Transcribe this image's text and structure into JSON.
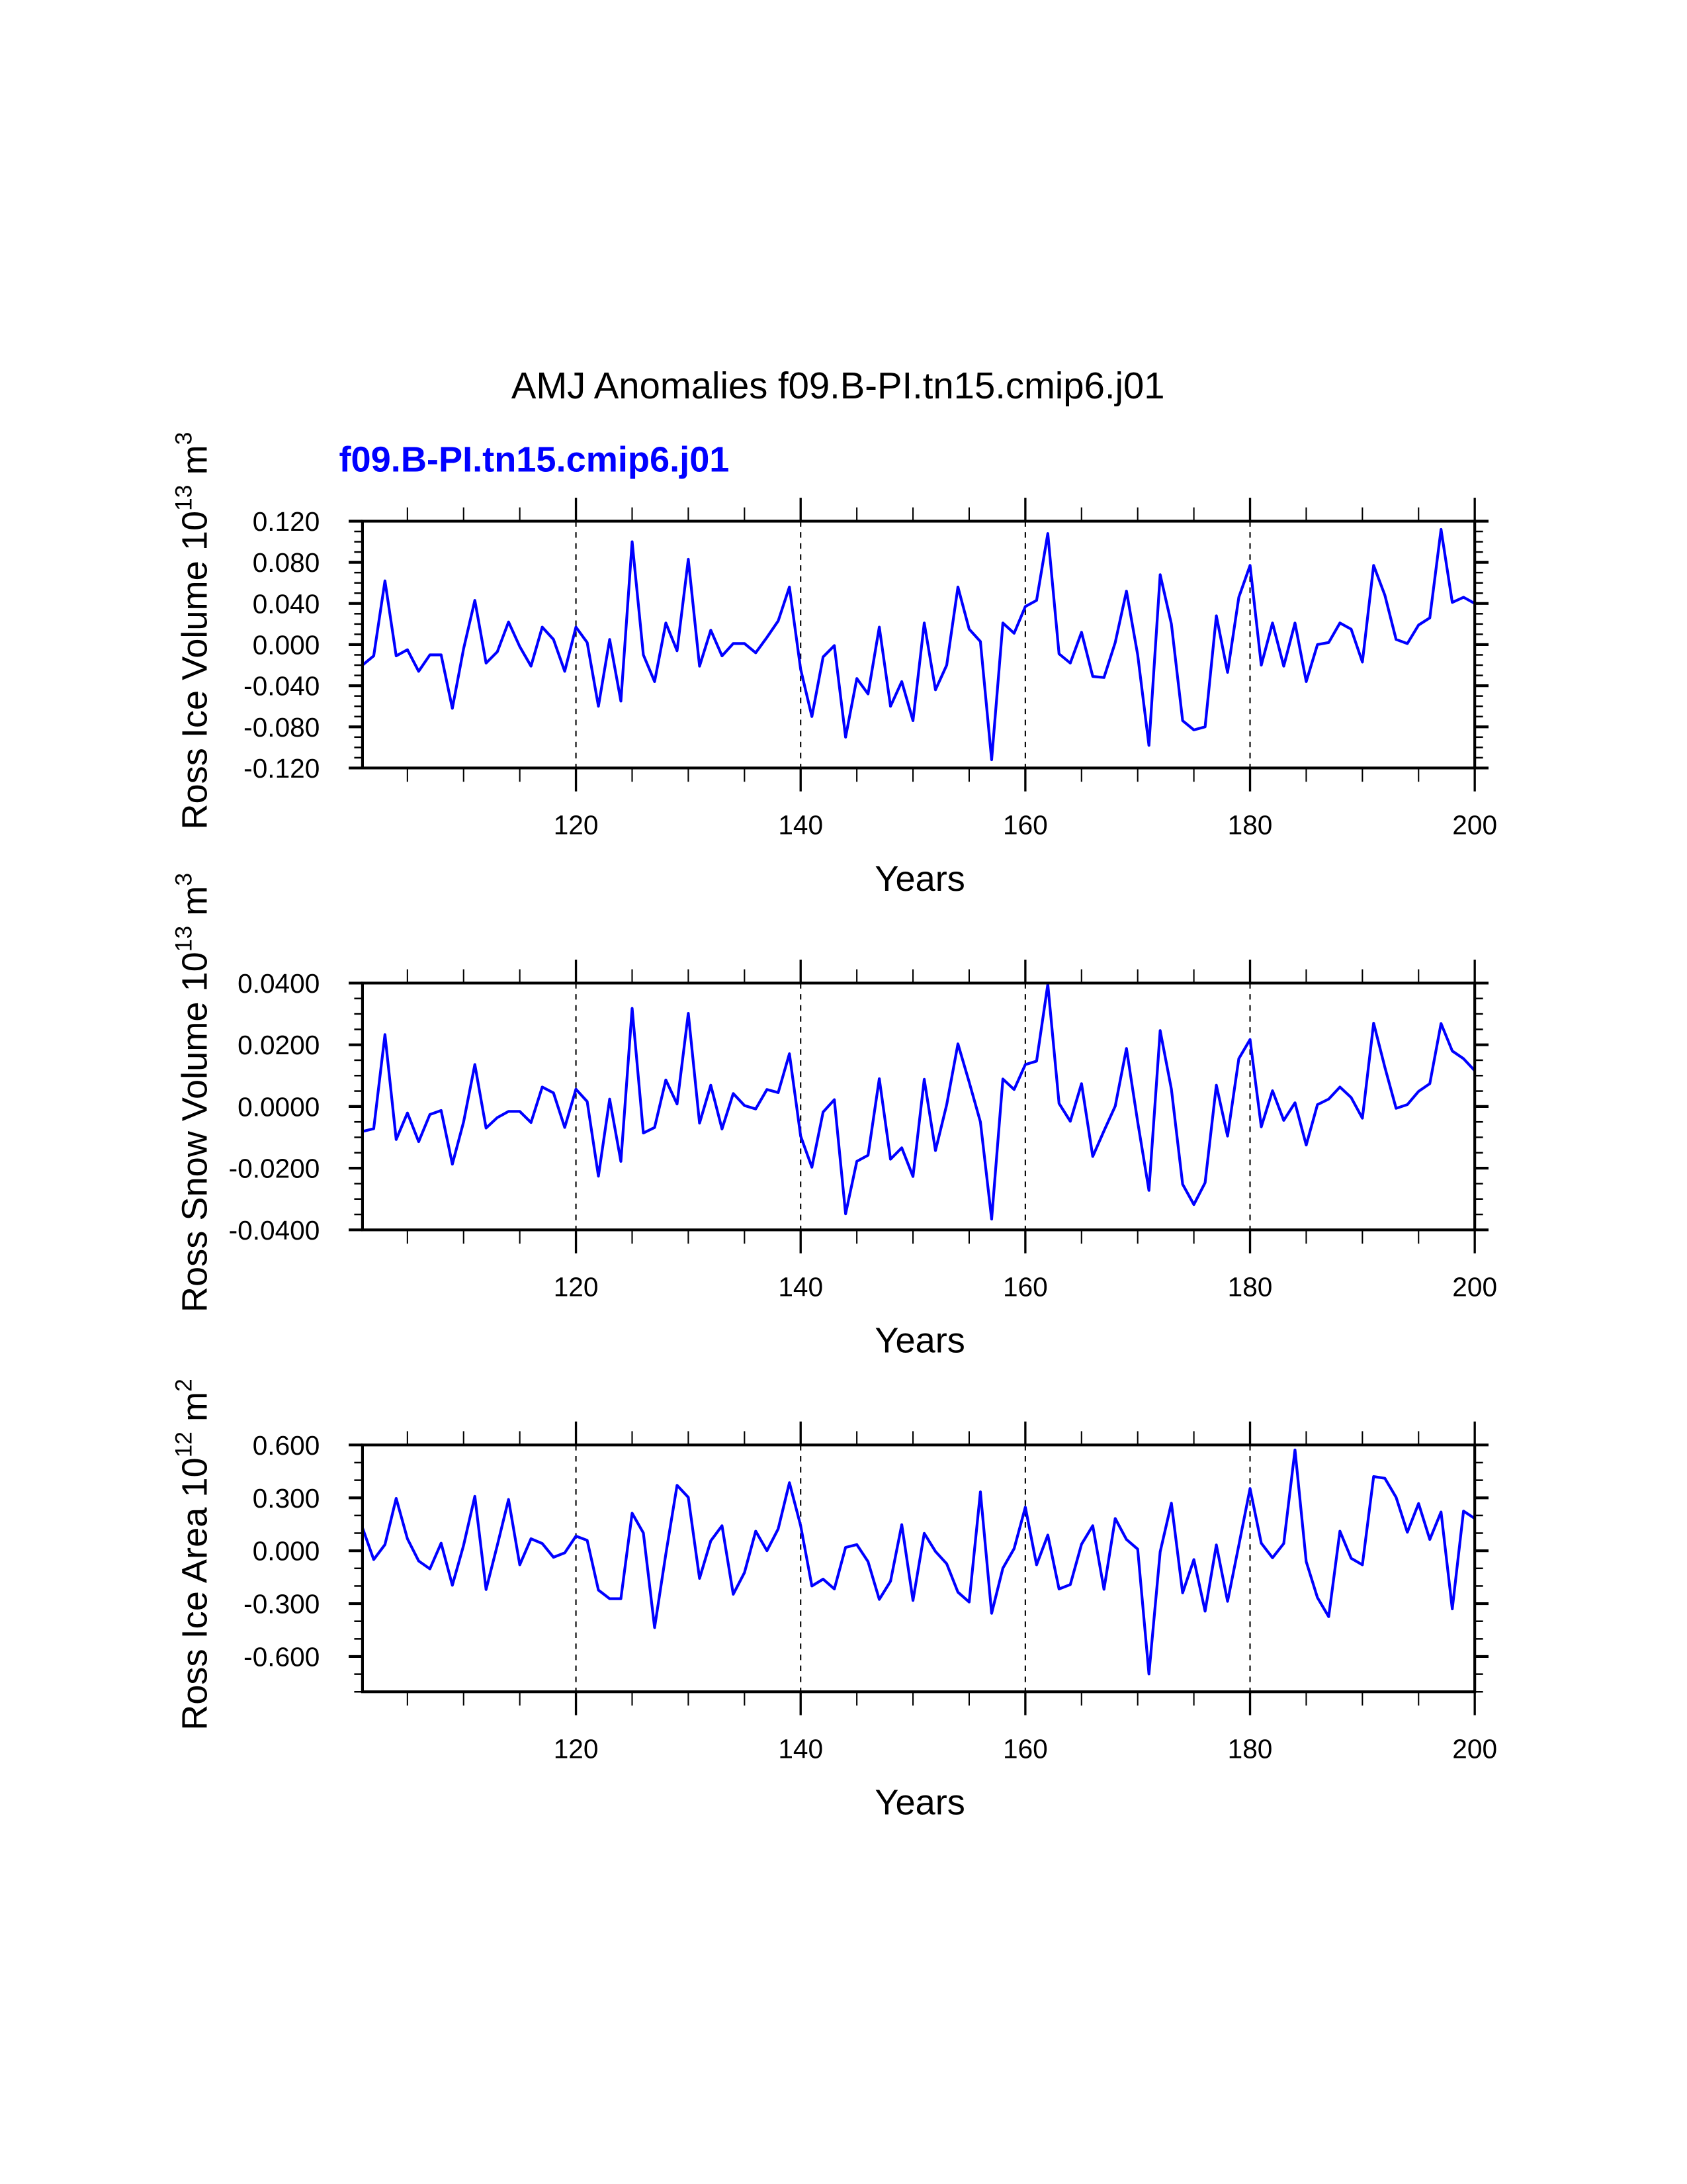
{
  "title": "AMJ Anomalies f09.B-PI.tn15.cmip6.j01",
  "subtitle": "f09.B-PI.tn15.cmip6.j01",
  "colors": {
    "line": "#0000ff",
    "subtitle": "#0000ff",
    "axes": "#000000"
  },
  "chart_data": [
    {
      "type": "line",
      "xlabel": "Years",
      "ylabel": {
        "text": "Ross Ice Volume 10",
        "exp": "13",
        "unit": " m",
        "unit_exp": "3"
      },
      "xlim": [
        101,
        200
      ],
      "ylim": [
        -0.12,
        0.12
      ],
      "xticks": [
        120,
        140,
        160,
        180,
        200
      ],
      "yticks": [
        "-0.120",
        "-0.080",
        "-0.040",
        "0.000",
        "0.040",
        "0.080",
        "0.120"
      ],
      "ytick_values": [
        -0.12,
        -0.08,
        -0.04,
        0,
        0.04,
        0.08,
        0.12
      ],
      "yminor_step": 0.01,
      "grid": "dashed vertical lines at major x ticks",
      "x_start": 101,
      "values": [
        -0.02,
        -0.011,
        0.062,
        -0.011,
        -0.005,
        -0.026,
        -0.01,
        -0.01,
        -0.062,
        -0.004,
        0.043,
        -0.018,
        -0.007,
        0.022,
        -0.002,
        -0.021,
        0.017,
        0.005,
        -0.026,
        0.017,
        0.002,
        -0.06,
        0.005,
        -0.055,
        0.1,
        -0.01,
        -0.036,
        0.021,
        -0.006,
        0.083,
        -0.021,
        0.014,
        -0.011,
        0.001,
        0.001,
        -0.008,
        0.007,
        0.023,
        0.056,
        -0.024,
        -0.07,
        -0.012,
        -0.001,
        -0.09,
        -0.033,
        -0.048,
        0.017,
        -0.06,
        -0.036,
        -0.074,
        0.021,
        -0.044,
        -0.02,
        0.056,
        0.015,
        0.003,
        -0.112,
        0.021,
        0.011,
        0.037,
        0.043,
        0.108,
        -0.009,
        -0.018,
        0.012,
        -0.031,
        -0.032,
        0.002,
        0.052,
        -0.01,
        -0.098,
        0.068,
        0.02,
        -0.074,
        -0.083,
        -0.08,
        0.028,
        -0.027,
        0.046,
        0.077,
        -0.02,
        0.021,
        -0.021,
        0.021,
        -0.036,
        0.0,
        0.002,
        0.021,
        0.015,
        -0.017,
        0.077,
        0.048,
        0.005,
        0.001,
        0.019,
        0.026,
        0.112,
        0.041,
        0.046,
        0.04
      ]
    },
    {
      "type": "line",
      "xlabel": "Years",
      "ylabel": {
        "text": "Ross Snow Volume 10",
        "exp": "13",
        "unit": " m",
        "unit_exp": "3"
      },
      "xlim": [
        101,
        200
      ],
      "ylim": [
        -0.04,
        0.04
      ],
      "xticks": [
        120,
        140,
        160,
        180,
        200
      ],
      "yticks": [
        "-0.0400",
        "-0.0200",
        "0.0000",
        "0.0200",
        "0.0400"
      ],
      "ytick_values": [
        -0.04,
        -0.02,
        0,
        0.02,
        0.04
      ],
      "yminor_step": 0.005,
      "grid": "dashed vertical lines at major x ticks",
      "x_start": 101,
      "values": [
        -0.0081,
        -0.0072,
        0.0233,
        -0.0107,
        -0.0021,
        -0.0114,
        -0.0026,
        -0.0013,
        -0.0187,
        -0.005,
        0.0136,
        -0.007,
        -0.0036,
        -0.0016,
        -0.0016,
        -0.0052,
        0.0063,
        0.0044,
        -0.0068,
        0.0056,
        0.0016,
        -0.0226,
        0.0024,
        -0.0178,
        0.0318,
        -0.0086,
        -0.0068,
        0.0086,
        0.0008,
        0.0302,
        -0.0054,
        0.0069,
        -0.0073,
        0.0042,
        0.0003,
        -0.0008,
        0.0055,
        0.0045,
        0.0171,
        -0.0096,
        -0.0197,
        -0.0018,
        0.0022,
        -0.0348,
        -0.0178,
        -0.0158,
        0.009,
        -0.0171,
        -0.0134,
        -0.0227,
        0.0088,
        -0.0143,
        0.0006,
        0.0203,
        0.0079,
        -0.005,
        -0.0365,
        0.0089,
        0.0055,
        0.0136,
        0.0147,
        0.0396,
        0.001,
        -0.0048,
        0.0074,
        -0.0162,
        -0.0079,
        0.0001,
        0.0188,
        -0.005,
        -0.0272,
        0.0246,
        0.0056,
        -0.0252,
        -0.0318,
        -0.0247,
        0.0069,
        -0.0096,
        0.0155,
        0.0217,
        -0.0066,
        0.0051,
        -0.0045,
        0.0012,
        -0.0125,
        0.0006,
        0.0024,
        0.0063,
        0.0029,
        -0.0038,
        0.027,
        0.0127,
        -0.0006,
        0.0006,
        0.0049,
        0.0074,
        0.0269,
        0.018,
        0.0155,
        0.0116
      ]
    },
    {
      "type": "line",
      "xlabel": "Years",
      "ylabel": {
        "text": "Ross Ice Area 10",
        "exp": "12",
        "unit": " m",
        "unit_exp": "2"
      },
      "xlim": [
        101,
        200
      ],
      "ylim": [
        -0.8,
        0.6
      ],
      "xticks": [
        120,
        140,
        160,
        180,
        200
      ],
      "yticks": [
        "-0.600",
        "-0.300",
        "0.000",
        "0.300",
        "0.600"
      ],
      "ytick_values": [
        -0.6,
        -0.3,
        0,
        0.3,
        0.6
      ],
      "yminor_step": 0.1,
      "grid": "dashed vertical lines at major x ticks",
      "x_start": 101,
      "values": [
        0.13,
        -0.05,
        0.035,
        0.297,
        0.068,
        -0.058,
        -0.103,
        0.043,
        -0.196,
        0.031,
        0.309,
        -0.22,
        0.031,
        0.291,
        -0.08,
        0.068,
        0.041,
        -0.037,
        -0.012,
        0.083,
        0.059,
        -0.223,
        -0.272,
        -0.272,
        0.213,
        0.101,
        -0.436,
        -0.019,
        0.371,
        0.303,
        -0.157,
        0.056,
        0.142,
        -0.247,
        -0.124,
        0.111,
        0.0,
        0.124,
        0.386,
        0.142,
        -0.2,
        -0.161,
        -0.217,
        0.019,
        0.035,
        -0.062,
        -0.276,
        -0.173,
        0.148,
        -0.282,
        0.099,
        -0.004,
        -0.074,
        -0.235,
        -0.291,
        0.334,
        -0.355,
        -0.099,
        0.012,
        0.247,
        -0.08,
        0.089,
        -0.217,
        -0.192,
        0.037,
        0.142,
        -0.219,
        0.183,
        0.064,
        0.009,
        -0.699,
        -0.006,
        0.27,
        -0.239,
        -0.05,
        -0.343,
        0.033,
        -0.287,
        0.031,
        0.353,
        0.043,
        -0.04,
        0.041,
        0.572,
        -0.062,
        -0.266,
        -0.374,
        0.111,
        -0.043,
        -0.08,
        0.421,
        0.411,
        0.303,
        0.105,
        0.268,
        0.064,
        0.22,
        -0.33,
        0.225,
        0.183
      ]
    }
  ]
}
